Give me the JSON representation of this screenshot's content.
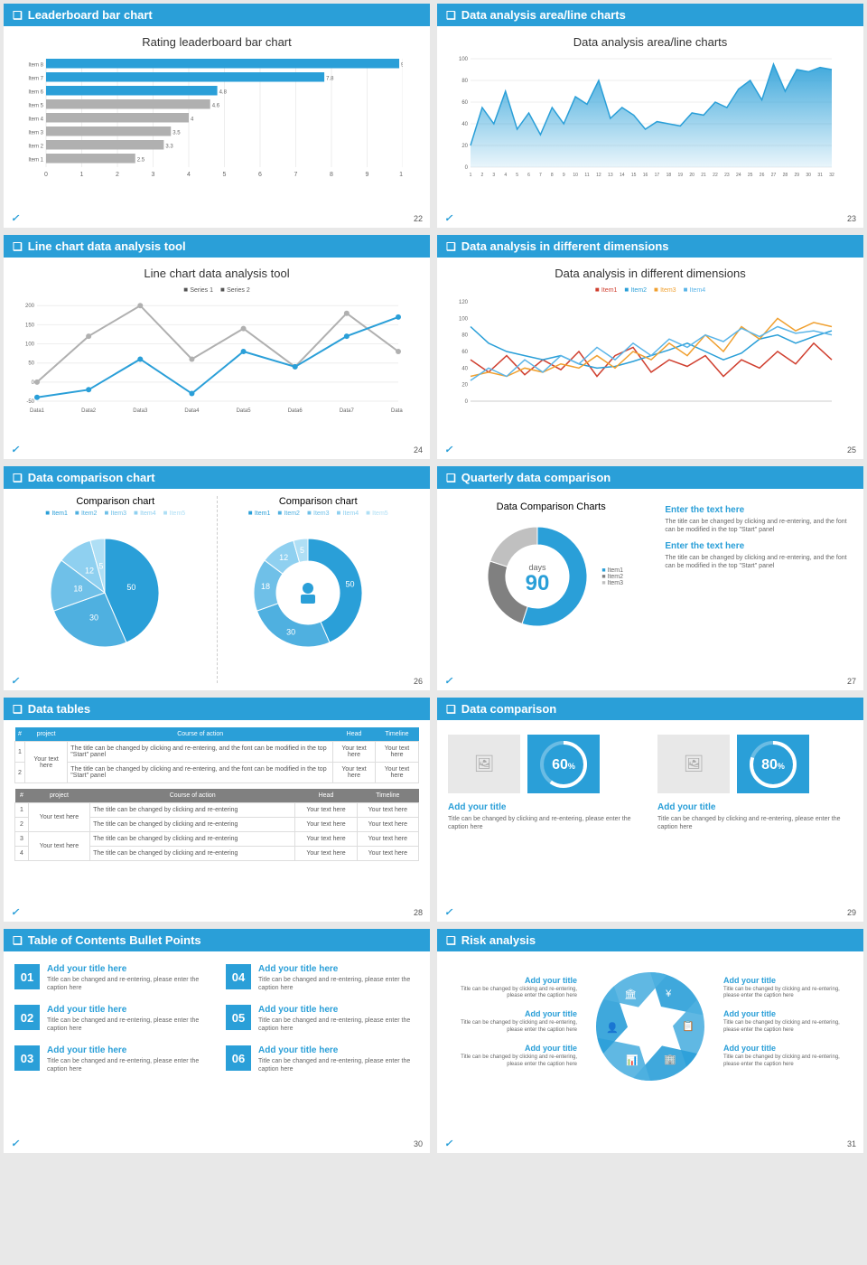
{
  "colors": {
    "brand": "#2a9fd8",
    "gray": "#b0b0b0",
    "darkgray": "#808080",
    "orange": "#f0a030",
    "red": "#d04030"
  },
  "slides": [
    {
      "num": 22,
      "title": "Leaderboard bar chart",
      "chart_title": "Rating leaderboard bar chart",
      "bars": {
        "items": [
          "Item 8",
          "Item 7",
          "Item 6",
          "Item 5",
          "Item 4",
          "Item 3",
          "Item 2",
          "Item 1"
        ],
        "values": [
          9.9,
          7.8,
          4.8,
          4.6,
          4,
          3.5,
          3.3,
          2.5
        ],
        "colors": [
          "#2a9fd8",
          "#2a9fd8",
          "#2a9fd8",
          "#b0b0b0",
          "#b0b0b0",
          "#b0b0b0",
          "#b0b0b0",
          "#b0b0b0"
        ],
        "xmax": 10,
        "xtick": 1
      }
    },
    {
      "num": 23,
      "title": "Data analysis area/line charts",
      "chart_title": "Data analysis area/line charts",
      "area": {
        "ylim": [
          0,
          100
        ],
        "xticks": 32,
        "fill": "#2a9fd8",
        "values": [
          20,
          55,
          40,
          70,
          35,
          50,
          30,
          55,
          40,
          65,
          58,
          80,
          45,
          55,
          48,
          35,
          42,
          40,
          38,
          50,
          48,
          60,
          55,
          72,
          80,
          62,
          95,
          70,
          90,
          88,
          92,
          90
        ]
      }
    },
    {
      "num": 24,
      "title": "Line chart data analysis tool",
      "chart_title": "Line chart data analysis tool",
      "legend": [
        "Series 1",
        "Series 2"
      ],
      "line": {
        "cats": [
          "Data1",
          "Data2",
          "Data3",
          "Data4",
          "Data5",
          "Data6",
          "Data7",
          "Data8"
        ],
        "s1": {
          "vals": [
            0,
            120,
            200,
            60,
            140,
            40,
            180,
            80
          ],
          "color": "#b0b0b0"
        },
        "s2": {
          "vals": [
            -40,
            -20,
            60,
            -30,
            80,
            40,
            120,
            170
          ],
          "color": "#2a9fd8"
        },
        "ylim": [
          -50,
          210
        ]
      }
    },
    {
      "num": 25,
      "title": "Data analysis in different dimensions",
      "chart_title": "Data analysis in different dimensions",
      "legend": [
        "Item1",
        "Item2",
        "Item3",
        "Item4"
      ],
      "colors": [
        "#d04030",
        "#2a9fd8",
        "#f0a030",
        "#5bb5e8"
      ],
      "ylim": [
        0,
        120
      ],
      "series": [
        [
          50,
          35,
          55,
          32,
          50,
          38,
          60,
          30,
          55,
          65,
          35,
          50,
          42,
          55,
          30,
          50,
          40,
          60,
          45,
          70,
          50
        ],
        [
          90,
          70,
          60,
          55,
          50,
          55,
          45,
          40,
          42,
          48,
          55,
          62,
          70,
          60,
          50,
          58,
          75,
          80,
          70,
          78,
          85
        ],
        [
          30,
          35,
          30,
          40,
          35,
          45,
          40,
          55,
          40,
          60,
          50,
          70,
          55,
          80,
          60,
          90,
          75,
          100,
          85,
          95,
          90
        ],
        [
          25,
          40,
          30,
          50,
          35,
          55,
          45,
          65,
          50,
          70,
          55,
          75,
          65,
          80,
          72,
          88,
          78,
          90,
          82,
          85,
          80
        ]
      ]
    },
    {
      "num": 26,
      "title": "Data comparison chart",
      "left_title": "Comparison chart",
      "right_title": "Comparison chart",
      "legend": [
        "Item1",
        "Item2",
        "Item3",
        "Item4",
        "Item5"
      ],
      "pie": {
        "vals": [
          50,
          30,
          18,
          12,
          5
        ],
        "colors": [
          "#2a9fd8",
          "#4fb0e0",
          "#6fc0e8",
          "#8fd0f0",
          "#afdff5"
        ]
      },
      "donut": {
        "vals": [
          50,
          30,
          18,
          12,
          5
        ],
        "colors": [
          "#2a9fd8",
          "#4fb0e0",
          "#6fc0e8",
          "#8fd0f0",
          "#afdff5"
        ]
      }
    },
    {
      "num": 27,
      "title": "Quarterly data comparison",
      "chart_title": "Data Comparison Charts",
      "center_label": "days",
      "center_value": "90",
      "legend": [
        "Item1",
        "Item2",
        "Item3"
      ],
      "donut": {
        "vals": [
          55,
          25,
          20
        ],
        "colors": [
          "#2a9fd8",
          "#808080",
          "#c0c0c0"
        ]
      },
      "blocks": [
        {
          "h": "Enter the text here",
          "p": "The title can be changed by clicking and re-entering, and the font can be modified in the top \"Start\" panel"
        },
        {
          "h": "Enter the text here",
          "p": "The title can be changed by clicking and re-entering, and the font can be modified in the top \"Start\" panel"
        }
      ]
    },
    {
      "num": 28,
      "title": "Data tables",
      "t1": {
        "headers": [
          "#",
          "project",
          "Course of action",
          "Head",
          "Timeline"
        ],
        "rows": [
          [
            "1",
            "Your text here",
            "The title can be changed by clicking and re-entering, and the font can be modified in the top \"Start\" panel",
            "Your text here",
            "Your text here"
          ],
          [
            "2",
            "",
            "The title can be changed by clicking and re-entering, and the font can be modified in the top \"Start\" panel",
            "Your text here",
            "Your text here"
          ]
        ]
      },
      "t2": {
        "headers": [
          "#",
          "project",
          "Course of action",
          "Head",
          "Timeline"
        ],
        "rows": [
          [
            "1",
            "Your text here",
            "The title can be changed by clicking and re-entering",
            "Your text here",
            "Your text here"
          ],
          [
            "2",
            "",
            "The title can be changed by clicking and re-entering",
            "Your text here",
            "Your text here"
          ],
          [
            "3",
            "Your text here",
            "The title can be changed by clicking and re-entering",
            "Your text here",
            "Your text here"
          ],
          [
            "4",
            "",
            "The title can be changed by clicking and re-entering",
            "Your text here",
            "Your text here"
          ]
        ]
      }
    },
    {
      "num": 29,
      "title": "Data comparison",
      "items": [
        {
          "pct": 60,
          "h": "Add your title",
          "p": "Title can be changed by clicking and re-entering, please enter the caption here"
        },
        {
          "pct": 80,
          "h": "Add your title",
          "p": "Title can be changed by clicking and re-entering, please enter the caption here"
        }
      ]
    },
    {
      "num": 30,
      "title": "Table of Contents Bullet Points",
      "items": [
        {
          "n": "01",
          "h": "Add your title here",
          "p": "Title can be changed and re-entering, please enter the caption here"
        },
        {
          "n": "02",
          "h": "Add your title here",
          "p": "Title can be changed and re-entering, please enter the caption here"
        },
        {
          "n": "03",
          "h": "Add your title here",
          "p": "Title can be changed and re-entering, please enter the caption here"
        },
        {
          "n": "04",
          "h": "Add your title here",
          "p": "Title can be changed and re-entering, please enter the caption here"
        },
        {
          "n": "05",
          "h": "Add your title here",
          "p": "Title can be changed and re-entering, please enter the caption here"
        },
        {
          "n": "06",
          "h": "Add your title here",
          "p": "Title can be changed and re-entering, please enter the caption here"
        }
      ]
    },
    {
      "num": 31,
      "title": "Risk analysis",
      "items": [
        {
          "h": "Add your title",
          "p": "Title can be changed by clicking and re-entering, please enter the caption here"
        },
        {
          "h": "Add your title",
          "p": "Title can be changed by clicking and re-entering, please enter the caption here"
        },
        {
          "h": "Add your title",
          "p": "Title can be changed by clicking and re-entering, please enter the caption here"
        },
        {
          "h": "Add your title",
          "p": "Title can be changed by clicking and re-entering, please enter the caption here"
        },
        {
          "h": "Add your title",
          "p": "Title can be changed by clicking and re-entering, please enter the caption here"
        },
        {
          "h": "Add your title",
          "p": "Title can be changed by clicking and re-entering, please enter the caption here"
        }
      ]
    }
  ]
}
